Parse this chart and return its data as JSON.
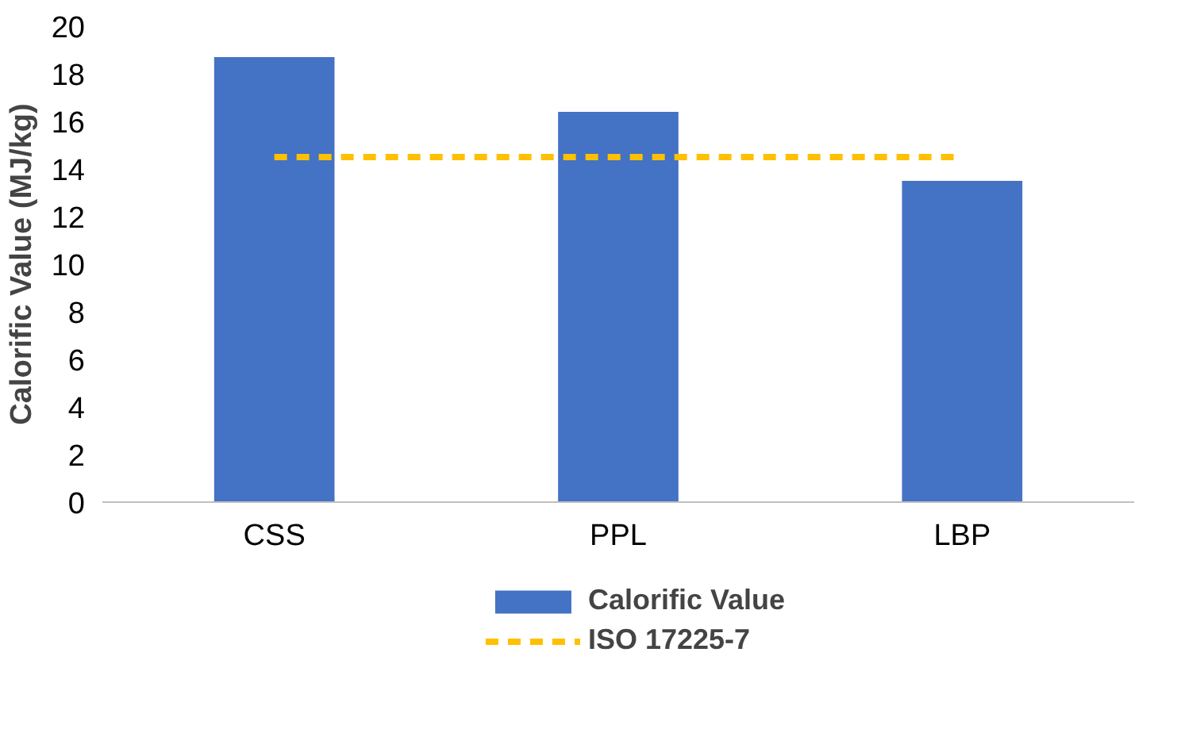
{
  "chart_data": {
    "type": "bar",
    "ylabel": "Calorific Value (MJ/kg)",
    "categories": [
      "CSS",
      "PPL",
      "LBP"
    ],
    "series": [
      {
        "name": "Calorific Value",
        "color": "#4472c4",
        "values": [
          18.7,
          16.4,
          13.5
        ]
      },
      {
        "name": "ISO 17225-7",
        "type": "line",
        "color": "#ffc000",
        "line_style": "dashed",
        "values": [
          14.5,
          14.5,
          14.5
        ]
      }
    ],
    "ylim": [
      0,
      20
    ],
    "yticks": [
      0,
      2,
      4,
      6,
      8,
      10,
      12,
      14,
      16,
      18,
      20
    ],
    "grid": false,
    "legend": "bottom"
  }
}
